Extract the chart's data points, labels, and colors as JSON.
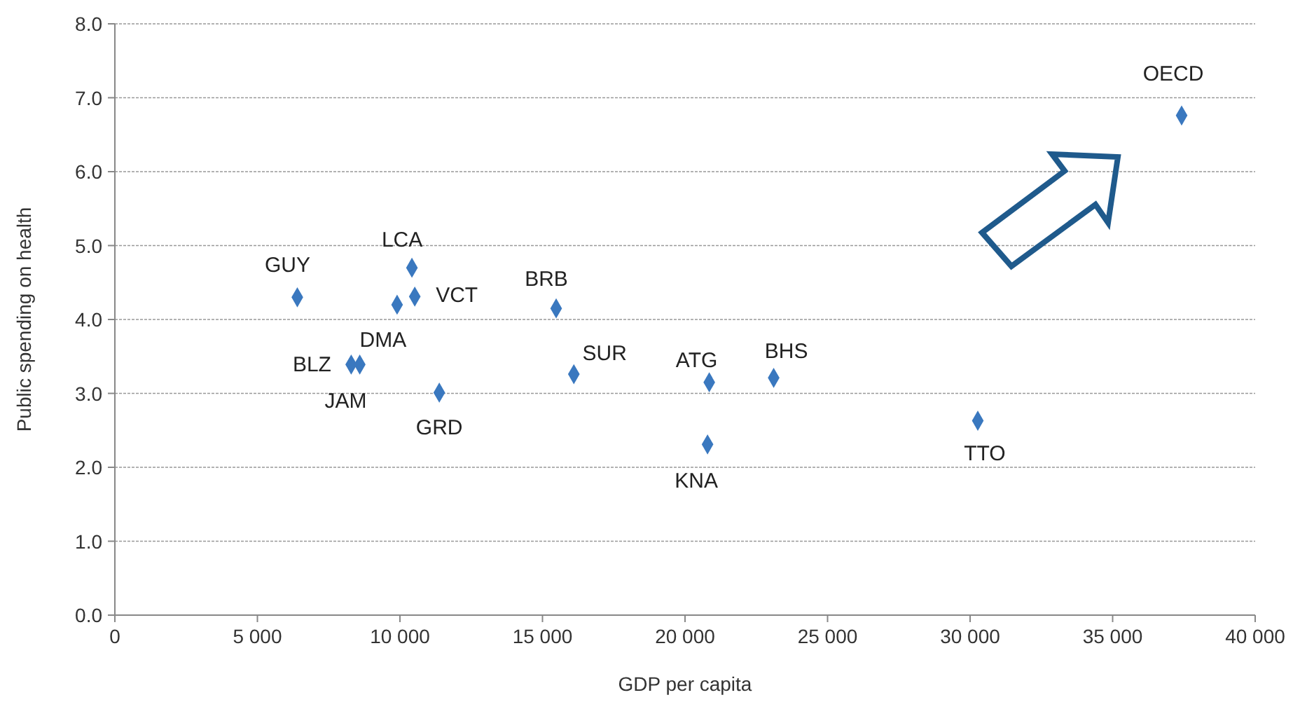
{
  "chart_data": {
    "type": "scatter",
    "xlabel": "GDP per capita",
    "ylabel": "Public spending on health",
    "x": [
      6400,
      10420,
      10520,
      9900,
      15480,
      8290,
      8590,
      11380,
      16100,
      20850,
      23110,
      20790,
      30270,
      37420
    ],
    "series": [
      {
        "color": "#3a78bf",
        "values": [
          4.3,
          4.7,
          4.31,
          4.2,
          4.15,
          3.39,
          3.39,
          3.01,
          3.26,
          3.15,
          3.21,
          2.31,
          2.63,
          6.76
        ]
      }
    ],
    "marker": "diamond",
    "grid": "y",
    "xlim": [
      0,
      40000
    ],
    "xticks": [
      0,
      {
        "value": 5000,
        "label": "5 000"
      },
      {
        "value": 10000,
        "label": "10 000"
      },
      {
        "value": 15000,
        "label": "15 000"
      },
      {
        "value": 20000,
        "label": "20 000"
      },
      {
        "value": 25000,
        "label": "25 000"
      },
      {
        "value": 30000,
        "label": "30 000"
      },
      {
        "value": 35000,
        "label": "35 000"
      },
      {
        "value": 40000,
        "label": "40 000"
      }
    ],
    "ylim": [
      0,
      8
    ],
    "yticks": [
      {
        "value": 0,
        "label": "0.0"
      },
      {
        "value": 1,
        "label": "1.0"
      },
      {
        "value": 2,
        "label": "2.0"
      },
      {
        "value": 3,
        "label": "3.0"
      },
      {
        "value": 4,
        "label": "4.0"
      },
      {
        "value": 5,
        "label": "5.0"
      },
      {
        "value": 6,
        "label": "6.0"
      },
      {
        "value": 7,
        "label": "7.0"
      },
      {
        "value": 8,
        "label": "8.0"
      }
    ],
    "annotations": [
      {
        "text": "GUY",
        "x": 6400,
        "y": 4.3
      },
      {
        "text": "LCA",
        "x": 10420,
        "y": 4.7
      },
      {
        "text": "VCT",
        "x": 10520,
        "y": 4.31
      },
      {
        "text": "DMA",
        "x": 9900,
        "y": 4.2
      },
      {
        "text": "BRB",
        "x": 15480,
        "y": 4.15
      },
      {
        "text": "BLZ",
        "x": 8290,
        "y": 3.39
      },
      {
        "text": "JAM",
        "x": 8590,
        "y": 3.39
      },
      {
        "text": "GRD",
        "x": 11380,
        "y": 3.01
      },
      {
        "text": "SUR",
        "x": 16100,
        "y": 3.26
      },
      {
        "text": "ATG",
        "x": 20850,
        "y": 3.15
      },
      {
        "text": "BHS",
        "x": 23110,
        "y": 3.21
      },
      {
        "text": "KNA",
        "x": 20790,
        "y": 2.31
      },
      {
        "text": "TTO",
        "x": 30270,
        "y": 2.63
      },
      {
        "text": "OECD",
        "x": 37420,
        "y": 6.76
      }
    ]
  }
}
